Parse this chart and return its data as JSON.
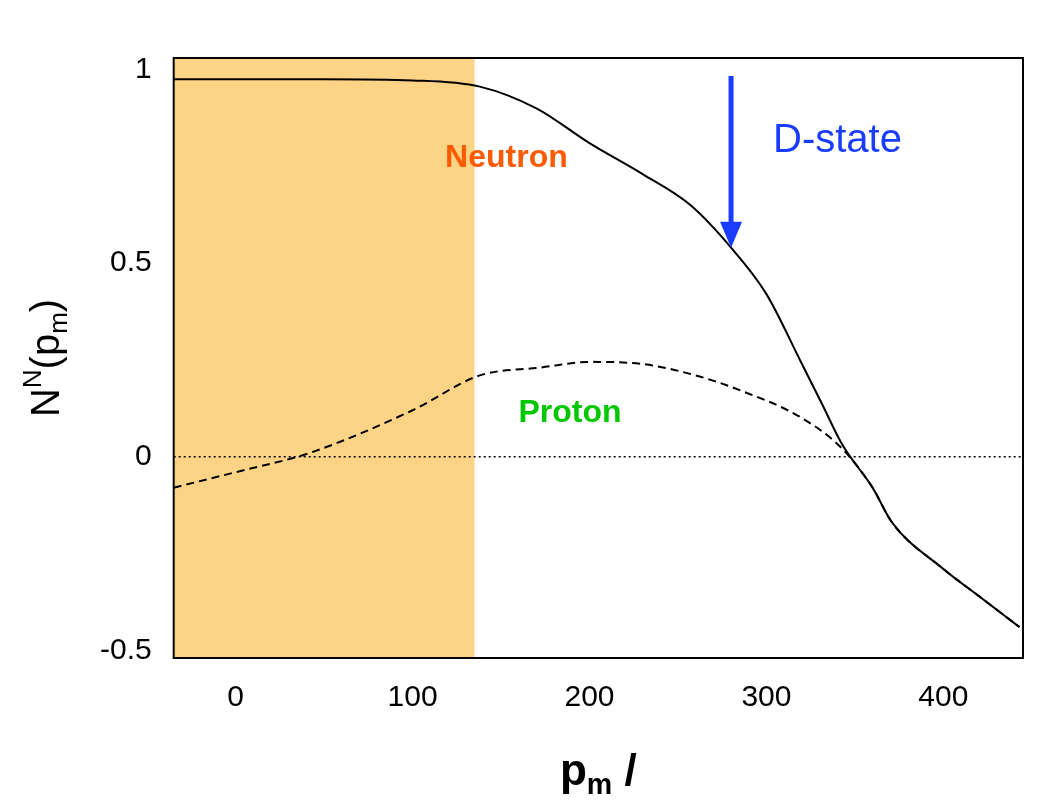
{
  "chart_data": {
    "type": "line",
    "xlabel": "p$_{m}$ /",
    "ylabel": "N$^{N}$(p$_{m}$)",
    "xlim": [
      -35,
      445
    ],
    "ylim": [
      -0.52,
      1.03
    ],
    "xticks": [
      0,
      100,
      200,
      300,
      400
    ],
    "yticks": [
      -0.5,
      0,
      0.5,
      1
    ],
    "grid": false,
    "legend": false,
    "series": [
      {
        "name": "Neutron",
        "color": "#000000",
        "line_style": "solid",
        "x": [
          -35,
          0,
          50,
          100,
          138,
          170,
          200,
          230,
          257,
          280,
          300,
          320,
          331,
          343,
          360,
          371,
          400,
          420,
          443
        ],
        "values": [
          0.975,
          0.975,
          0.975,
          0.972,
          0.956,
          0.9,
          0.81,
          0.73,
          0.65,
          0.54,
          0.42,
          0.24,
          0.14,
          0.03,
          -0.08,
          -0.17,
          -0.29,
          -0.36,
          -0.44
        ]
      },
      {
        "name": "Proton",
        "color": "#000000",
        "line_style": "dashed",
        "x": [
          -35,
          0,
          42,
          100,
          138,
          172,
          200,
          229,
          260,
          286,
          320,
          343,
          360,
          371,
          400,
          420,
          443
        ],
        "values": [
          -0.08,
          -0.04,
          0.01,
          0.12,
          0.21,
          0.23,
          0.245,
          0.24,
          0.21,
          0.17,
          0.1,
          0.02,
          -0.08,
          -0.17,
          -0.29,
          -0.36,
          -0.44
        ]
      }
    ],
    "ref_lines": [
      {
        "axis": "y",
        "value": 0,
        "line_style": "dotted",
        "color": "#000000"
      }
    ],
    "bands": [
      {
        "axis": "x",
        "from": -35,
        "to": 135,
        "color": "#fdd385"
      }
    ],
    "annotations": [
      {
        "text": "D-state",
        "x": 280,
        "y": 0.54
      }
    ]
  }
}
